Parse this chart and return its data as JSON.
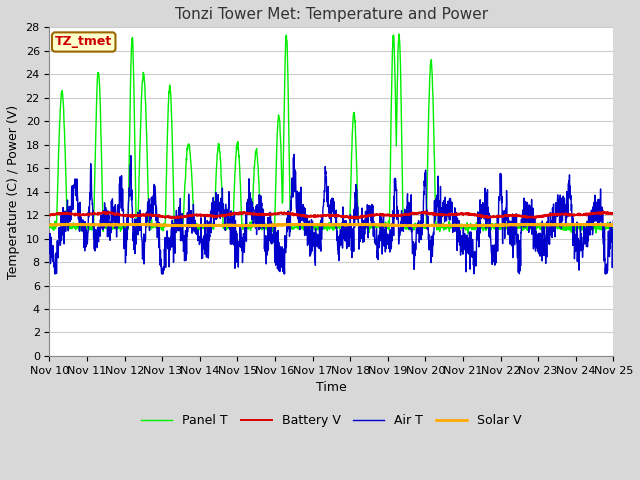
{
  "title": "Tonzi Tower Met: Temperature and Power",
  "xlabel": "Time",
  "ylabel": "Temperature (C) / Power (V)",
  "annotation": "TZ_tmet",
  "annotation_color": "#cc0000",
  "annotation_bg": "#ffffcc",
  "annotation_border": "#996600",
  "xlim": [
    0,
    15
  ],
  "ylim": [
    0,
    28
  ],
  "figure_bg": "#d8d8d8",
  "plot_bg": "#ffffff",
  "grid_color": "#cccccc",
  "panel_color": "#00ee00",
  "battery_color": "#dd0000",
  "air_color": "#0000cc",
  "solar_color": "#ffaa00",
  "title_fontsize": 11,
  "axis_label_fontsize": 9,
  "tick_fontsize": 8,
  "legend_fontsize": 9
}
